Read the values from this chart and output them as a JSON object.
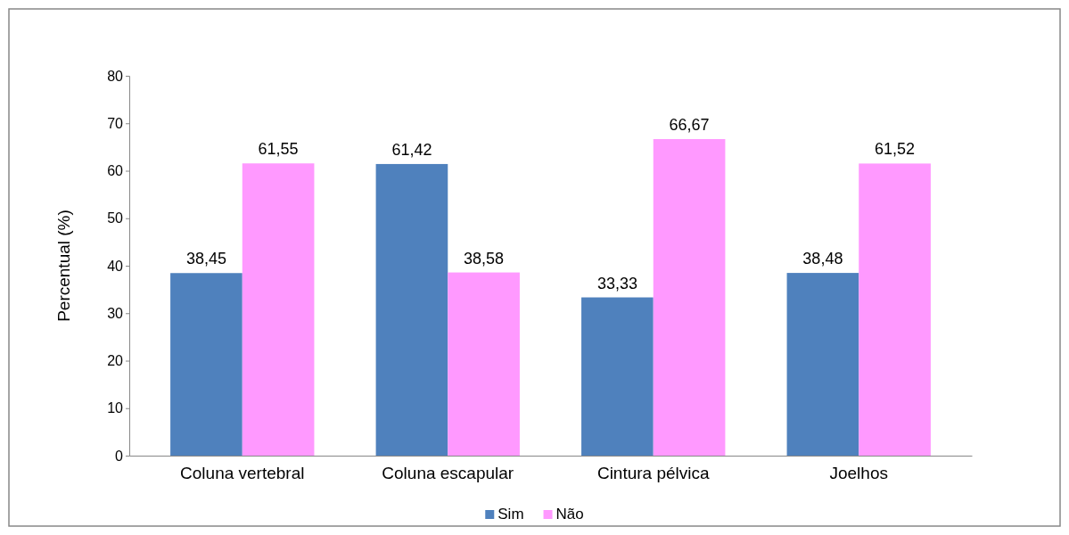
{
  "chart_data": {
    "type": "bar",
    "ylabel": "Percentual (%)",
    "categories": [
      "Coluna vertebral",
      "Coluna escapular",
      "Cintura pélvica",
      "Joelhos"
    ],
    "series": [
      {
        "name": "Sim",
        "color": "#4f81bd",
        "values": [
          38.45,
          61.42,
          33.33,
          38.48
        ],
        "value_labels": [
          "38,45",
          "61,42",
          "33,33",
          "38,48"
        ]
      },
      {
        "name": "Não",
        "color": "#ff99ff",
        "values": [
          61.55,
          38.58,
          66.67,
          61.52
        ],
        "value_labels": [
          "61,55",
          "38,58",
          "66,67",
          "61,52"
        ]
      }
    ],
    "ylim": [
      0,
      80
    ],
    "yticks": [
      0,
      10,
      20,
      30,
      40,
      50,
      60,
      70,
      80
    ],
    "grid": false,
    "legend": "bottom"
  }
}
